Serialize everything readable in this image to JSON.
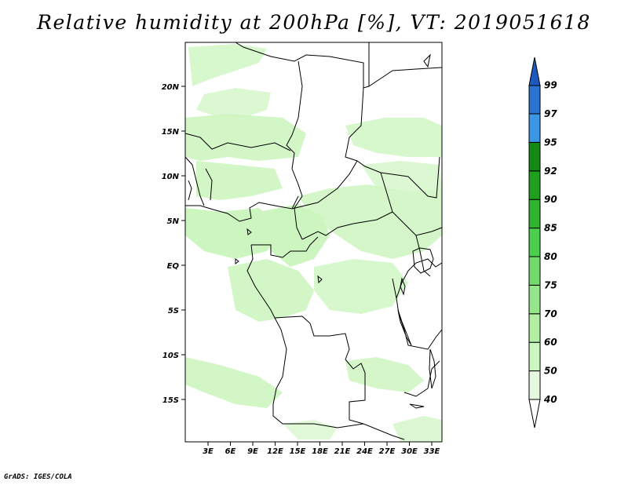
{
  "title": "Relative humidity at 200hPa [%], VT: 2019051618",
  "credit": "GrADS: IGES/COLA",
  "map": {
    "lat_labels": [
      "20N",
      "15N",
      "10N",
      "5N",
      "EQ",
      "5S",
      "10S",
      "15S"
    ],
    "lon_labels": [
      "3E",
      "6E",
      "9E",
      "12E",
      "15E",
      "18E",
      "21E",
      "24E",
      "27E",
      "30E",
      "33E"
    ],
    "land_color": "#ffffff",
    "border_color": "#000000"
  },
  "colorbar": {
    "levels": [
      "40",
      "50",
      "60",
      "70",
      "75",
      "80",
      "85",
      "90",
      "92",
      "95",
      "97",
      "99"
    ],
    "colors": [
      "#ffffff",
      "#e6f9e0",
      "#cdf5c0",
      "#b2efa4",
      "#95e58b",
      "#72da6c",
      "#4ccf4c",
      "#2eb42e",
      "#1ea01e",
      "#148a14",
      "#3c96e6",
      "#2a75d4",
      "#1d5ac0"
    ]
  }
}
